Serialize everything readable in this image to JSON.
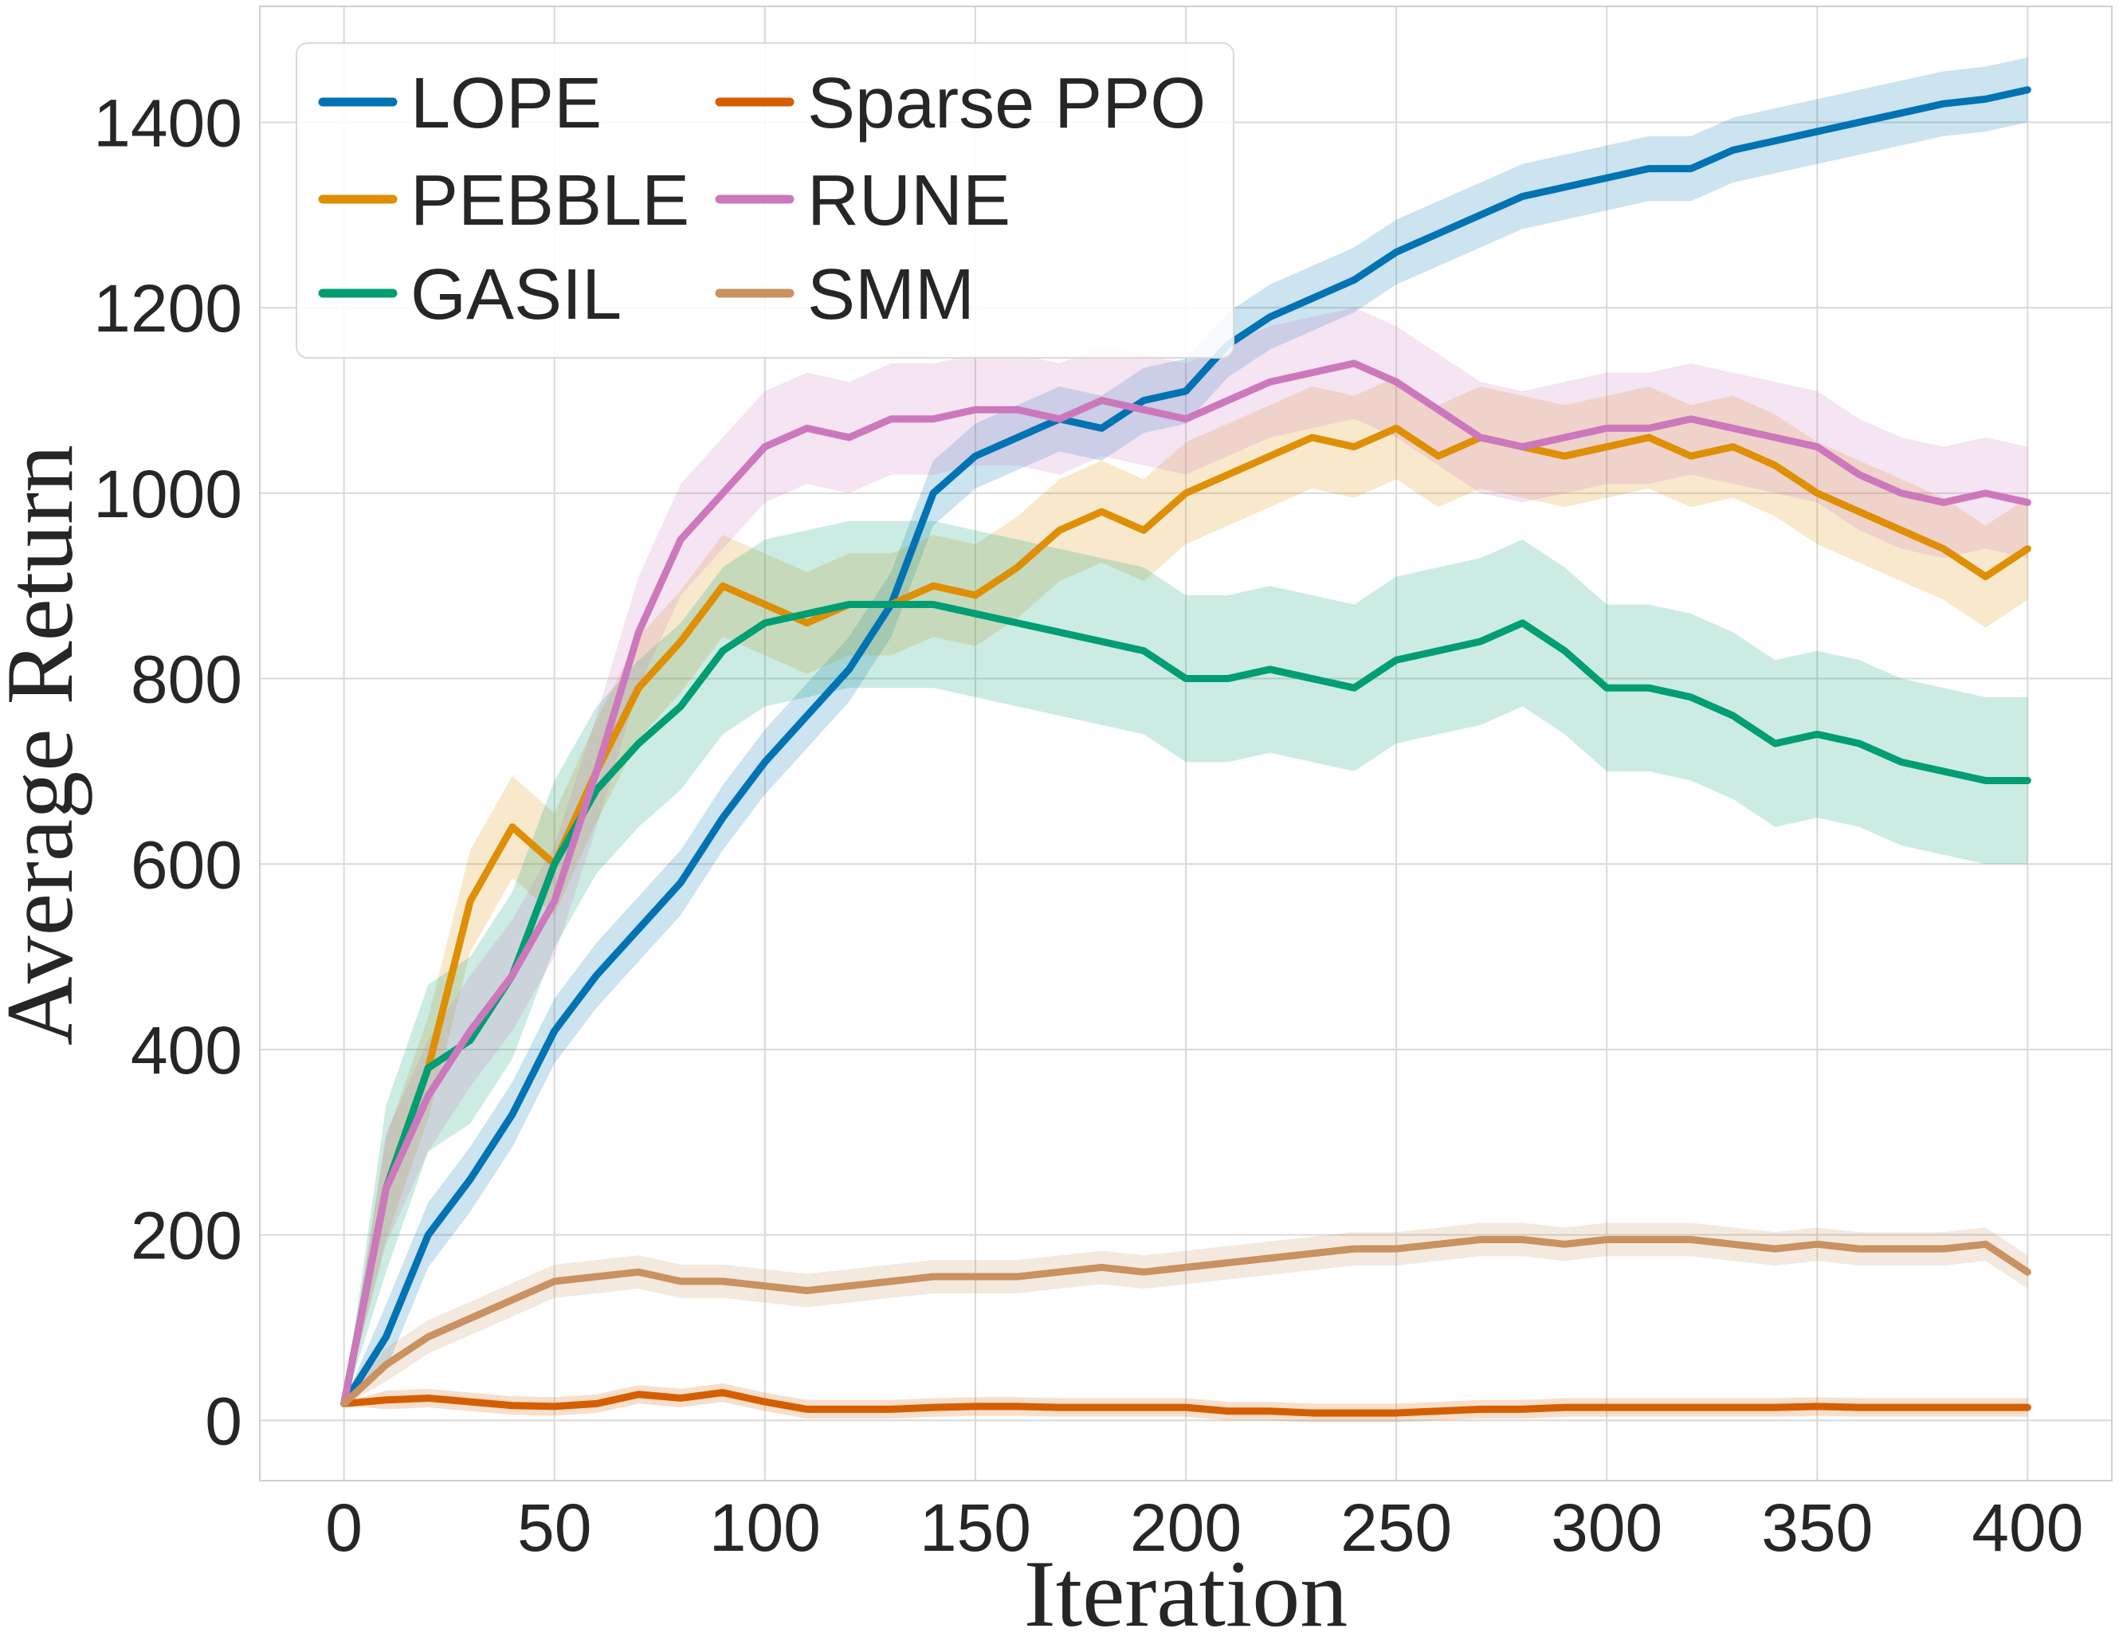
{
  "chart_data": {
    "type": "line",
    "title": "",
    "xlabel": "Iteration",
    "ylabel": "Average Return",
    "xlim": [
      -20,
      420
    ],
    "ylim": [
      -65,
      1525
    ],
    "xticks": [
      0,
      50,
      100,
      150,
      200,
      250,
      300,
      350,
      400
    ],
    "yticks": [
      0,
      200,
      400,
      600,
      800,
      1000,
      1200,
      1400
    ],
    "grid": true,
    "legend_position": "top-left",
    "legend_columns": 2,
    "series": [
      {
        "name": "LOPE",
        "color": "#0173b2",
        "x": [
          0,
          10,
          20,
          30,
          40,
          50,
          60,
          70,
          80,
          90,
          100,
          110,
          120,
          130,
          140,
          150,
          160,
          170,
          180,
          190,
          200,
          210,
          220,
          230,
          240,
          250,
          260,
          270,
          280,
          290,
          300,
          310,
          320,
          330,
          340,
          350,
          360,
          370,
          380,
          390,
          400
        ],
        "y": [
          18,
          90,
          200,
          260,
          330,
          420,
          480,
          530,
          580,
          650,
          710,
          760,
          810,
          880,
          1000,
          1040,
          1060,
          1080,
          1070,
          1100,
          1110,
          1160,
          1190,
          1210,
          1230,
          1260,
          1280,
          1300,
          1320,
          1330,
          1340,
          1350,
          1350,
          1370,
          1380,
          1390,
          1400,
          1410,
          1420,
          1425,
          1435
        ],
        "spread": 35
      },
      {
        "name": "PEBBLE",
        "color": "#de8f05",
        "x": [
          0,
          10,
          20,
          30,
          40,
          50,
          60,
          70,
          80,
          90,
          100,
          110,
          120,
          130,
          140,
          150,
          160,
          170,
          180,
          190,
          200,
          210,
          220,
          230,
          240,
          250,
          260,
          270,
          280,
          290,
          300,
          310,
          320,
          330,
          340,
          350,
          360,
          370,
          380,
          390,
          400
        ],
        "y": [
          18,
          250,
          380,
          560,
          640,
          600,
          700,
          790,
          840,
          900,
          880,
          860,
          880,
          880,
          900,
          890,
          920,
          960,
          980,
          960,
          1000,
          1020,
          1040,
          1060,
          1050,
          1070,
          1040,
          1060,
          1050,
          1040,
          1050,
          1060,
          1040,
          1050,
          1030,
          1000,
          980,
          960,
          940,
          910,
          940
        ],
        "spread": 55
      },
      {
        "name": "GASIL",
        "color": "#029e73",
        "x": [
          0,
          10,
          20,
          30,
          40,
          50,
          60,
          70,
          80,
          90,
          100,
          110,
          120,
          130,
          140,
          150,
          160,
          170,
          180,
          190,
          200,
          210,
          220,
          230,
          240,
          250,
          260,
          270,
          280,
          290,
          300,
          310,
          320,
          330,
          340,
          350,
          360,
          370,
          380,
          390,
          400
        ],
        "y": [
          18,
          250,
          380,
          410,
          480,
          600,
          680,
          730,
          770,
          830,
          860,
          870,
          880,
          880,
          880,
          870,
          860,
          850,
          840,
          830,
          800,
          800,
          810,
          800,
          790,
          820,
          830,
          840,
          860,
          830,
          790,
          790,
          780,
          760,
          730,
          740,
          730,
          710,
          700,
          690,
          690
        ],
        "spread": 90
      },
      {
        "name": "Sparse PPO",
        "color": "#d55e00",
        "x": [
          0,
          10,
          20,
          30,
          40,
          50,
          60,
          70,
          80,
          90,
          100,
          110,
          120,
          130,
          140,
          150,
          160,
          170,
          180,
          190,
          200,
          210,
          220,
          230,
          240,
          250,
          260,
          270,
          280,
          290,
          300,
          310,
          320,
          330,
          340,
          350,
          360,
          370,
          380,
          390,
          400
        ],
        "y": [
          18,
          22,
          24,
          20,
          16,
          15,
          18,
          28,
          24,
          30,
          20,
          12,
          12,
          12,
          14,
          15,
          15,
          14,
          14,
          14,
          14,
          10,
          10,
          8,
          8,
          8,
          10,
          12,
          12,
          14,
          14,
          14,
          14,
          14,
          14,
          15,
          14,
          14,
          14,
          14,
          14
        ],
        "spread": 10
      },
      {
        "name": "RUNE",
        "color": "#cc78bc",
        "x": [
          0,
          10,
          20,
          30,
          40,
          50,
          60,
          70,
          80,
          90,
          100,
          110,
          120,
          130,
          140,
          150,
          160,
          170,
          180,
          190,
          200,
          210,
          220,
          230,
          240,
          250,
          260,
          270,
          280,
          290,
          300,
          310,
          320,
          330,
          340,
          350,
          360,
          370,
          380,
          390,
          400
        ],
        "y": [
          18,
          250,
          350,
          420,
          480,
          560,
          700,
          850,
          950,
          1000,
          1050,
          1070,
          1060,
          1080,
          1080,
          1090,
          1090,
          1080,
          1100,
          1090,
          1080,
          1100,
          1120,
          1130,
          1140,
          1120,
          1090,
          1060,
          1050,
          1060,
          1070,
          1070,
          1080,
          1070,
          1060,
          1050,
          1020,
          1000,
          990,
          1000,
          990
        ],
        "spread": 60
      },
      {
        "name": "SMM",
        "color": "#ca9161",
        "x": [
          0,
          10,
          20,
          30,
          40,
          50,
          60,
          70,
          80,
          90,
          100,
          110,
          120,
          130,
          140,
          150,
          160,
          170,
          180,
          190,
          200,
          210,
          220,
          230,
          240,
          250,
          260,
          270,
          280,
          290,
          300,
          310,
          320,
          330,
          340,
          350,
          360,
          370,
          380,
          390,
          400
        ],
        "y": [
          18,
          60,
          90,
          110,
          130,
          150,
          155,
          160,
          150,
          150,
          145,
          140,
          145,
          150,
          155,
          155,
          155,
          160,
          165,
          160,
          165,
          170,
          175,
          180,
          185,
          185,
          190,
          195,
          195,
          190,
          195,
          195,
          195,
          190,
          185,
          190,
          185,
          185,
          185,
          190,
          160
        ],
        "spread": 18
      }
    ]
  },
  "legend": {
    "entries": [
      "LOPE",
      "Sparse PPO",
      "PEBBLE",
      "RUNE",
      "GASIL",
      "SMM"
    ]
  }
}
